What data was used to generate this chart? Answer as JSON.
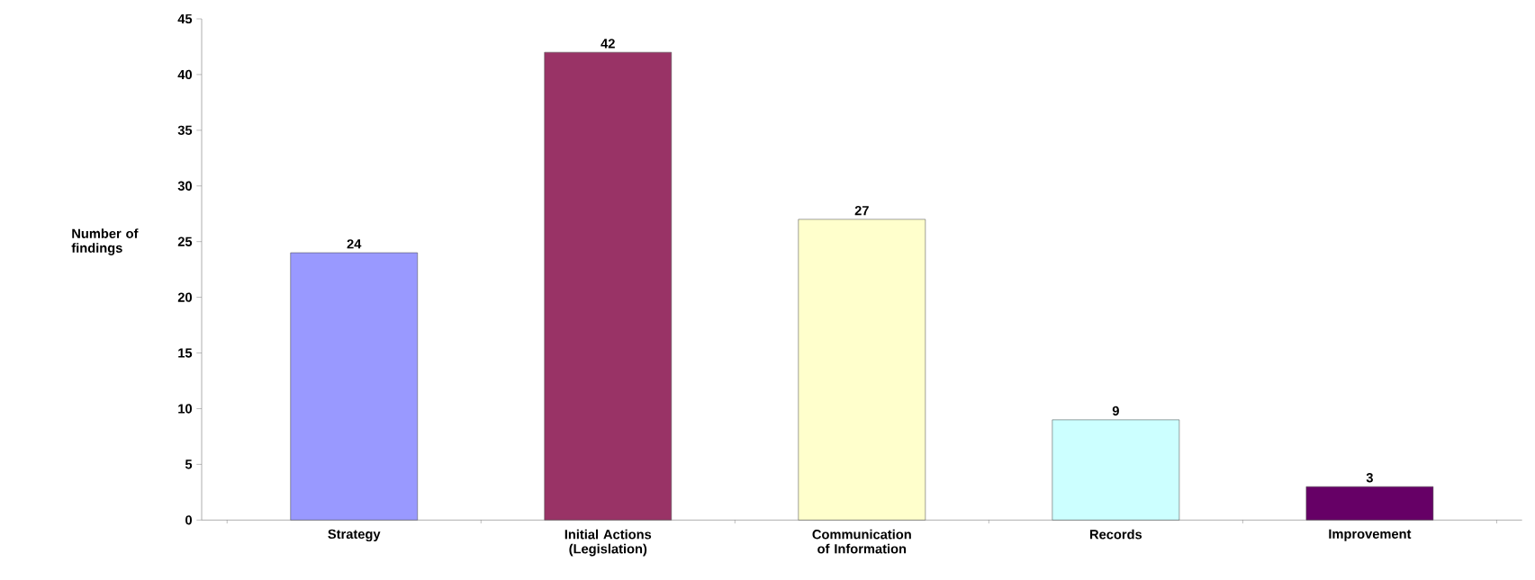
{
  "chart_data": {
    "type": "bar",
    "ylabel": "Number of findings",
    "categories": [
      "Strategy",
      "Initial Actions (Legislation)",
      "Communication of Information",
      "Records",
      "Improvement"
    ],
    "values": [
      24,
      42,
      27,
      9,
      3
    ],
    "colors": [
      "#9999ff",
      "#993366",
      "#ffffcc",
      "#ccffff",
      "#660066"
    ],
    "ylim": [
      0,
      45
    ],
    "yticks": [
      0,
      5,
      10,
      15,
      20,
      25,
      30,
      35,
      40,
      45
    ],
    "data_labels": true
  }
}
